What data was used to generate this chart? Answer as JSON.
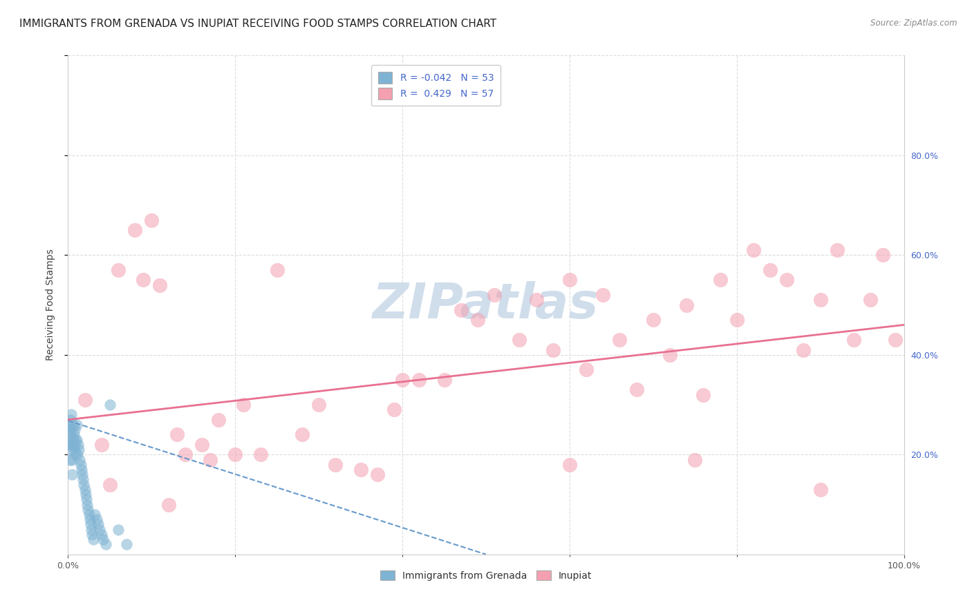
{
  "title": "IMMIGRANTS FROM GRENADA VS INUPIAT RECEIVING FOOD STAMPS CORRELATION CHART",
  "source": "Source: ZipAtlas.com",
  "ylabel": "Receiving Food Stamps",
  "watermark": "ZIPatlas",
  "legend_entries": [
    {
      "label": "R = -0.042   N = 53",
      "color": "#a8c4e0"
    },
    {
      "label": "R =  0.429   N = 57",
      "color": "#f4a0b0"
    }
  ],
  "bottom_legend": [
    "Immigrants from Grenada",
    "Inupiat"
  ],
  "xlim": [
    0.0,
    1.0
  ],
  "ylim": [
    0.0,
    1.0
  ],
  "right_yticks": [
    0.2,
    0.4,
    0.6,
    0.8
  ],
  "right_yticklabels": [
    "20.0%",
    "40.0%",
    "60.0%",
    "80.0%"
  ],
  "grid_yticks": [
    0.2,
    0.4,
    0.6,
    0.8,
    1.0
  ],
  "grid_color": "#dddddd",
  "blue_scatter_x": [
    0.001,
    0.001,
    0.002,
    0.002,
    0.002,
    0.003,
    0.003,
    0.003,
    0.004,
    0.004,
    0.005,
    0.005,
    0.005,
    0.006,
    0.006,
    0.007,
    0.007,
    0.008,
    0.008,
    0.009,
    0.009,
    0.01,
    0.01,
    0.011,
    0.012,
    0.013,
    0.014,
    0.015,
    0.016,
    0.017,
    0.018,
    0.019,
    0.02,
    0.021,
    0.022,
    0.023,
    0.024,
    0.025,
    0.026,
    0.027,
    0.028,
    0.029,
    0.03,
    0.032,
    0.034,
    0.036,
    0.038,
    0.04,
    0.042,
    0.045,
    0.05,
    0.06,
    0.07
  ],
  "blue_scatter_y": [
    0.26,
    0.23,
    0.25,
    0.22,
    0.19,
    0.27,
    0.24,
    0.21,
    0.28,
    0.25,
    0.22,
    0.19,
    0.16,
    0.26,
    0.23,
    0.24,
    0.21,
    0.25,
    0.22,
    0.23,
    0.2,
    0.26,
    0.23,
    0.2,
    0.22,
    0.21,
    0.19,
    0.18,
    0.17,
    0.16,
    0.15,
    0.14,
    0.13,
    0.12,
    0.11,
    0.1,
    0.09,
    0.08,
    0.07,
    0.06,
    0.05,
    0.04,
    0.03,
    0.08,
    0.07,
    0.06,
    0.05,
    0.04,
    0.03,
    0.02,
    0.3,
    0.05,
    0.02
  ],
  "pink_scatter_x": [
    0.02,
    0.04,
    0.06,
    0.08,
    0.09,
    0.1,
    0.11,
    0.13,
    0.14,
    0.16,
    0.17,
    0.18,
    0.2,
    0.21,
    0.23,
    0.25,
    0.28,
    0.3,
    0.32,
    0.35,
    0.37,
    0.39,
    0.42,
    0.45,
    0.47,
    0.49,
    0.51,
    0.54,
    0.56,
    0.58,
    0.6,
    0.62,
    0.64,
    0.66,
    0.68,
    0.7,
    0.72,
    0.74,
    0.76,
    0.78,
    0.8,
    0.82,
    0.84,
    0.86,
    0.88,
    0.9,
    0.92,
    0.94,
    0.96,
    0.975,
    0.99,
    0.05,
    0.12,
    0.4,
    0.6,
    0.75,
    0.9
  ],
  "pink_scatter_y": [
    0.31,
    0.22,
    0.57,
    0.65,
    0.55,
    0.67,
    0.54,
    0.24,
    0.2,
    0.22,
    0.19,
    0.27,
    0.2,
    0.3,
    0.2,
    0.57,
    0.24,
    0.3,
    0.18,
    0.17,
    0.16,
    0.29,
    0.35,
    0.35,
    0.49,
    0.47,
    0.52,
    0.43,
    0.51,
    0.41,
    0.55,
    0.37,
    0.52,
    0.43,
    0.33,
    0.47,
    0.4,
    0.5,
    0.32,
    0.55,
    0.47,
    0.61,
    0.57,
    0.55,
    0.41,
    0.51,
    0.61,
    0.43,
    0.51,
    0.6,
    0.43,
    0.14,
    0.1,
    0.35,
    0.18,
    0.19,
    0.13
  ],
  "blue_line_x": [
    0.0,
    0.5
  ],
  "blue_line_y": [
    0.268,
    0.0
  ],
  "pink_line_x": [
    0.0,
    1.0
  ],
  "pink_line_y": [
    0.27,
    0.46
  ],
  "blue_color": "#7fb3d3",
  "pink_color": "#f4a0b0",
  "blue_line_color": "#6699cc",
  "pink_line_color": "#e87090",
  "title_fontsize": 11,
  "tick_fontsize": 9,
  "watermark_color": "#c8d8e8",
  "watermark_fontsize": 52,
  "background_color": "#ffffff"
}
